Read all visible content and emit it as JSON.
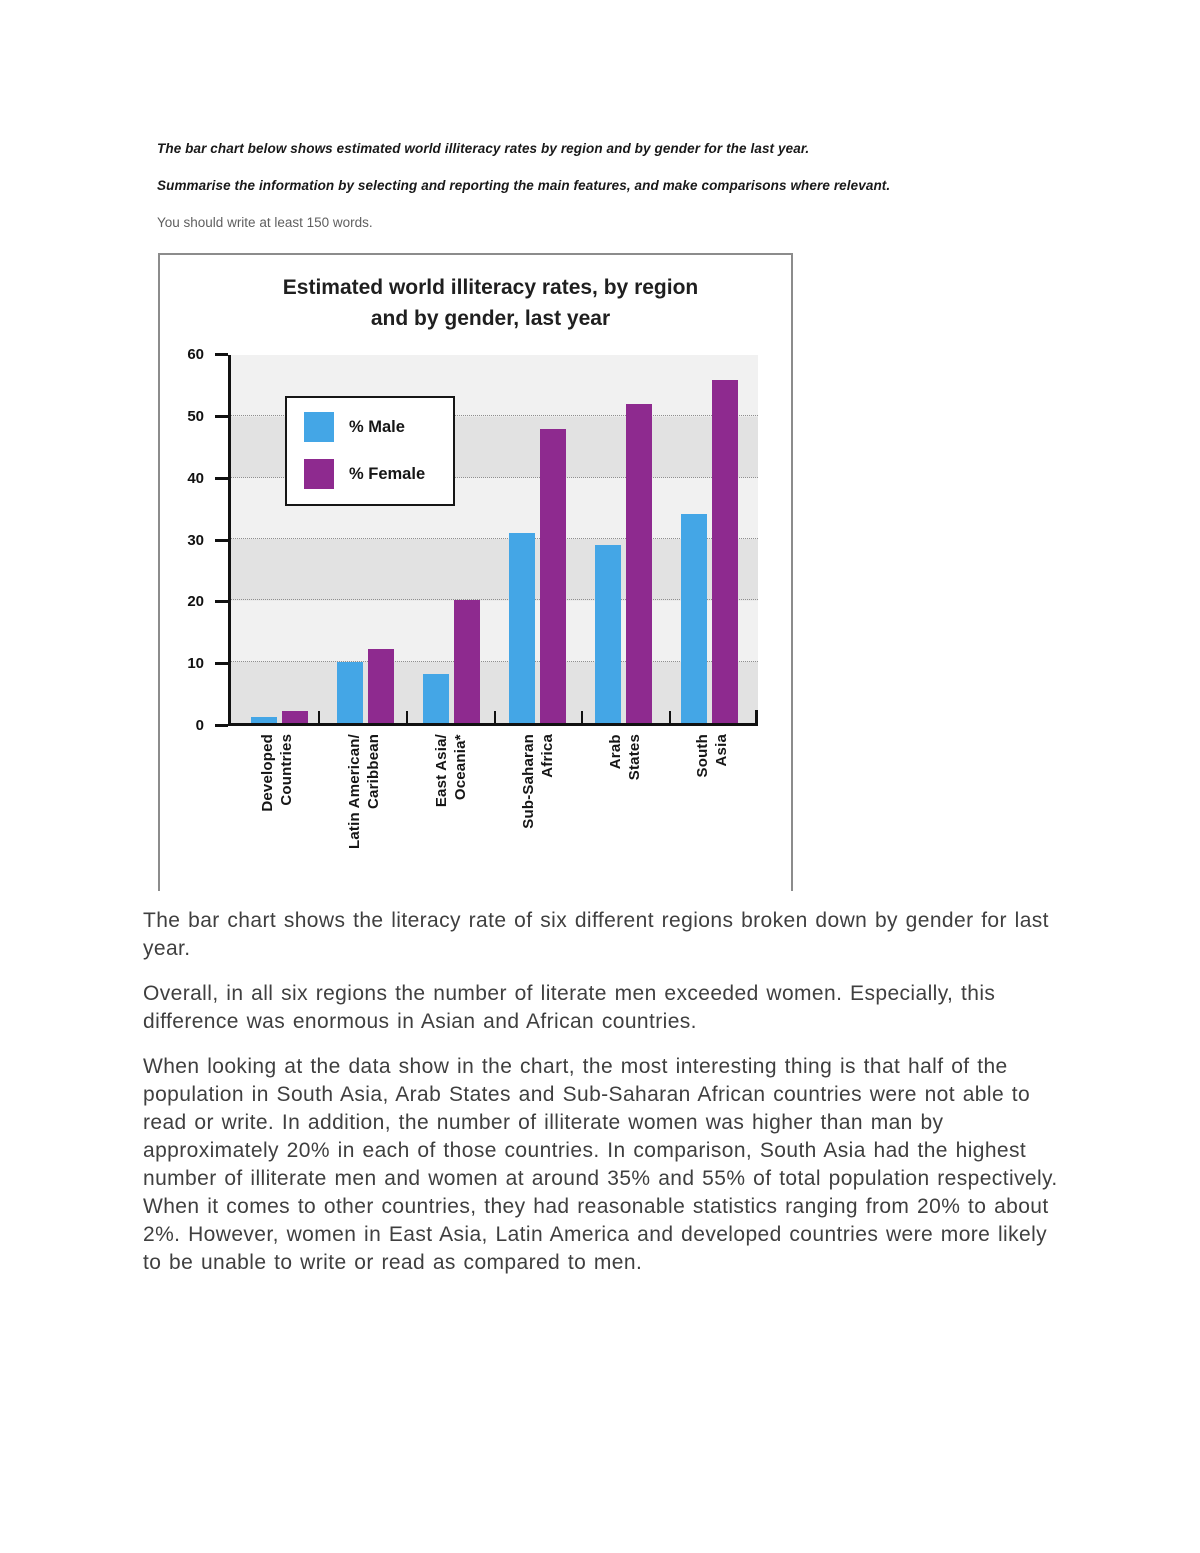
{
  "task": {
    "prompt_line1": "The bar chart below shows estimated world illiteracy rates by region and by gender for the last year.",
    "prompt_line2": "Summarise the information by selecting and reporting the main features, and make comparisons where relevant.",
    "note": "You should write at least 150 words."
  },
  "chart_data": {
    "type": "bar",
    "title_lines": [
      "Estimated world illiteracy rates, by region",
      "and by gender, last year"
    ],
    "categories": [
      [
        "Developed",
        "Countries"
      ],
      [
        "Latin American/",
        "Caribbean"
      ],
      [
        "East Asia/",
        "Oceania*"
      ],
      [
        "Sub-Saharan",
        "Africa"
      ],
      [
        "Arab",
        "States"
      ],
      [
        "South",
        "Asia"
      ]
    ],
    "series": [
      {
        "name": "% Male",
        "color": "#44a6e6",
        "values": [
          1,
          10,
          8,
          31,
          29,
          34
        ]
      },
      {
        "name": "% Female",
        "color": "#8e2a8f",
        "values": [
          2,
          12,
          20,
          48,
          52,
          56
        ]
      }
    ],
    "xlabel": "",
    "ylabel": "",
    "ylim": [
      0,
      60
    ],
    "yticks": [
      0,
      10,
      20,
      30,
      40,
      50,
      60
    ],
    "grid": "dotted horizontal lines at each 10, alternating gray bands",
    "legend_position": "inside plot, top-left"
  },
  "essay": {
    "paragraphs": [
      "The bar chart shows the literacy rate of six different regions broken down by gender for last year.",
      "Overall, in all six regions the number of literate men exceeded women. Especially, this difference was enormous in Asian and African countries.",
      "When looking at the data show in the chart, the most interesting thing is that half of the population in South Asia, Arab States and Sub-Saharan African countries were not able to read or write. In addition, the number of illiterate women was higher than man by approximately 20% in each of those countries. In comparison, South Asia had the highest number of illiterate men and women at around 35% and 55% of total population respectively. When it comes to other countries, they had reasonable statistics ranging from 20% to about 2%. However, women in East Asia, Latin America and developed countries were more likely to be unable to write or read as compared to men."
    ]
  },
  "colors": {
    "male_bar": "#44a6e6",
    "female_bar": "#8e2a8f",
    "band_light": "#f1f1f1",
    "band_dark": "#e2e2e2",
    "panel_border": "#8c8c8c",
    "axis": "#111111"
  }
}
